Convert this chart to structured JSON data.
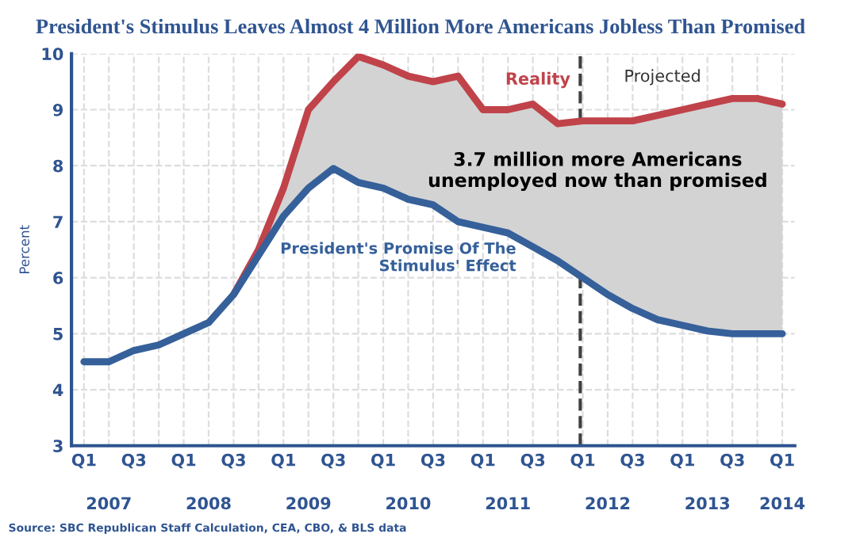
{
  "chart_data": {
    "type": "line",
    "title": "President's Stimulus Leaves Almost 4 Million More Americans Jobless Than Promised",
    "ylabel": "Percent",
    "categories": [
      "Q1",
      null,
      "Q3",
      null,
      "Q1",
      null,
      "Q3",
      null,
      "Q1",
      null,
      "Q3",
      null,
      "Q1",
      null,
      "Q3",
      null,
      "Q1",
      null,
      "Q3",
      null,
      "Q1",
      null,
      "Q3",
      null,
      "Q1",
      null,
      "Q3",
      null,
      "Q1"
    ],
    "ylim": [
      3,
      10
    ],
    "yticks": [
      3,
      4,
      5,
      6,
      7,
      8,
      9,
      10
    ],
    "grid": true,
    "line_style": "solid",
    "series": [
      {
        "name": "President's Promise Of The\nStimulus' Effect",
        "color": "#35609a",
        "values": [
          4.5,
          4.5,
          4.7,
          4.8,
          5.0,
          5.2,
          5.7,
          6.4,
          7.1,
          7.6,
          7.95,
          7.7,
          7.6,
          7.4,
          7.3,
          7.0,
          6.9,
          6.8,
          6.55,
          6.3,
          6.0,
          5.7,
          5.45,
          5.25,
          5.15,
          5.05,
          5.0,
          5.0,
          5.0
        ]
      },
      {
        "name": "Reality",
        "color": "#c0434a",
        "values": [
          null,
          null,
          null,
          null,
          null,
          null,
          5.7,
          6.5,
          7.6,
          9.0,
          9.5,
          9.95,
          9.8,
          9.6,
          9.5,
          9.6,
          9.0,
          9.0,
          9.1,
          8.75,
          8.8,
          8.8,
          8.8,
          8.9,
          9.0,
          9.1,
          9.2,
          9.2,
          9.1
        ],
        "lower": [
          null,
          null,
          null,
          null,
          null,
          null,
          5.7,
          6.4,
          7.1,
          7.6,
          7.95,
          7.7,
          7.6,
          7.4,
          7.3,
          7.0,
          6.9,
          6.8,
          6.55,
          6.3,
          6.0,
          5.7,
          5.45,
          5.25,
          5.15,
          5.05,
          5.0,
          5.0,
          5.0
        ],
        "upper": [
          null,
          null,
          null,
          null,
          null,
          null,
          5.7,
          6.5,
          7.6,
          9.0,
          9.5,
          9.95,
          9.8,
          9.6,
          9.5,
          9.6,
          9.0,
          9.0,
          9.1,
          8.75,
          8.8,
          8.8,
          8.8,
          8.9,
          9.0,
          9.1,
          9.2,
          9.2,
          9.1
        ]
      }
    ],
    "annotations": [
      "Projected",
      "3.7 million more Americans\nunemployed now than promised",
      "Source: SBC Republican Staff Calculation, CEA, CBO, & BLS data",
      "2007",
      "2008",
      "2009",
      "2010",
      "2011",
      "2012",
      "2013",
      "2014"
    ]
  }
}
